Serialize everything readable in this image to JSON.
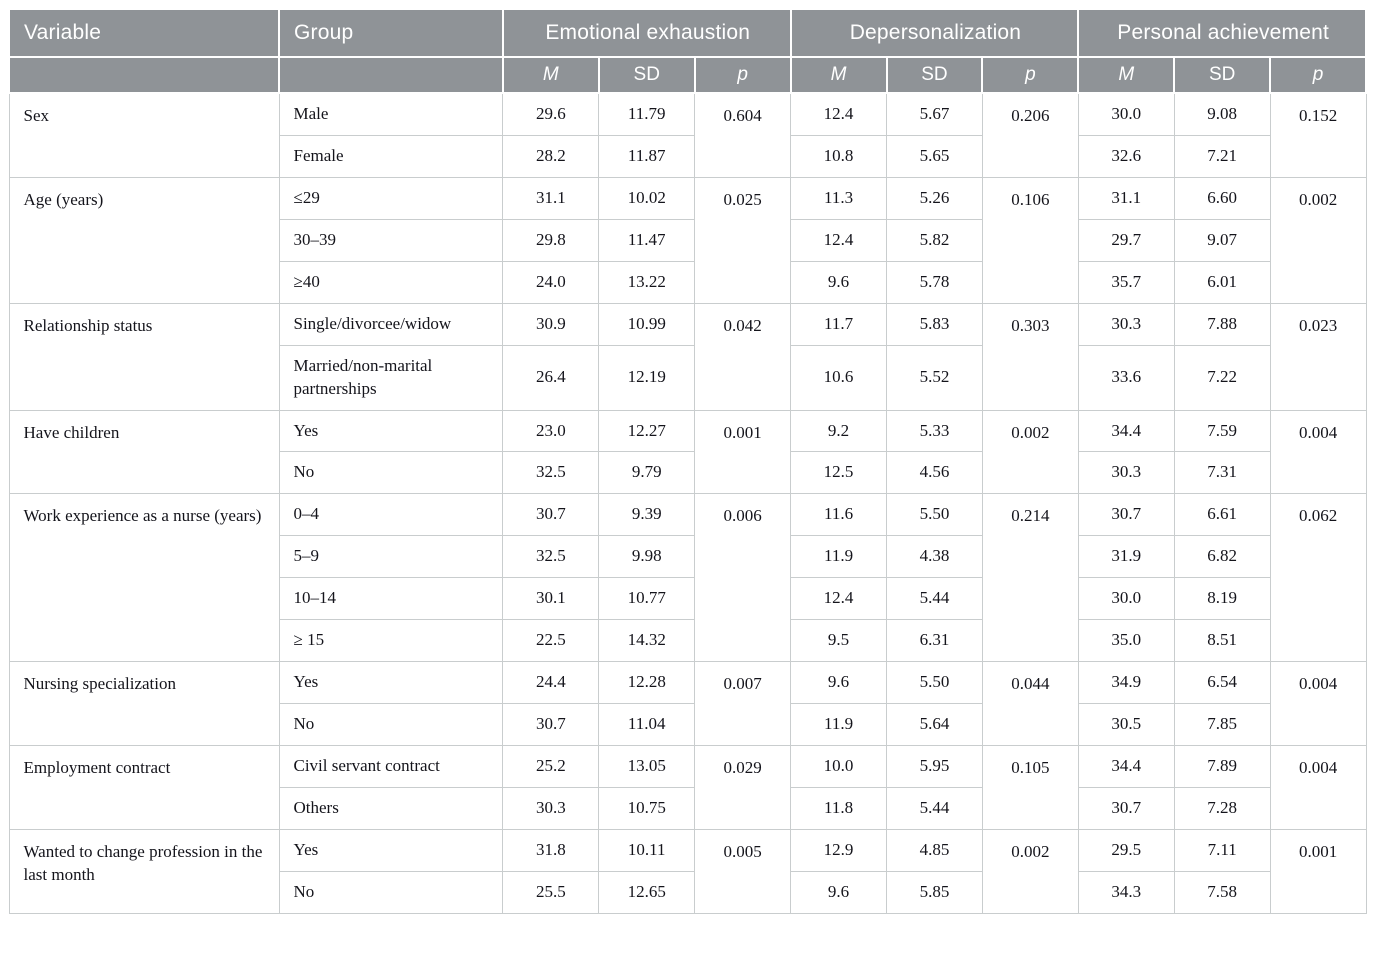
{
  "table": {
    "header": {
      "variable": "Variable",
      "group": "Group",
      "measures": [
        {
          "label": "Emotional exhaustion"
        },
        {
          "label": "Depersonalization"
        },
        {
          "label": "Personal achievement"
        }
      ],
      "stats": [
        "M",
        "SD",
        "p"
      ]
    },
    "sections": [
      {
        "variable": "Sex",
        "p": [
          "0.604",
          "0.206",
          "0.152"
        ],
        "rows": [
          {
            "group": "Male",
            "values": [
              "29.6",
              "11.79",
              "12.4",
              "5.67",
              "30.0",
              "9.08"
            ]
          },
          {
            "group": "Female",
            "values": [
              "28.2",
              "11.87",
              "10.8",
              "5.65",
              "32.6",
              "7.21"
            ]
          }
        ]
      },
      {
        "variable": "Age (years)",
        "p": [
          "0.025",
          "0.106",
          "0.002"
        ],
        "rows": [
          {
            "group": "≤29",
            "values": [
              "31.1",
              "10.02",
              "11.3",
              "5.26",
              "31.1",
              "6.60"
            ]
          },
          {
            "group": "30–39",
            "values": [
              "29.8",
              "11.47",
              "12.4",
              "5.82",
              "29.7",
              "9.07"
            ]
          },
          {
            "group": "≥40",
            "values": [
              "24.0",
              "13.22",
              "9.6",
              "5.78",
              "35.7",
              "6.01"
            ]
          }
        ]
      },
      {
        "variable": "Relationship status",
        "p": [
          "0.042",
          "0.303",
          "0.023"
        ],
        "rows": [
          {
            "group": "Single/divorcee/widow",
            "values": [
              "30.9",
              "10.99",
              "11.7",
              "5.83",
              "30.3",
              "7.88"
            ]
          },
          {
            "group": "Married/non-marital partnerships",
            "values": [
              "26.4",
              "12.19",
              "10.6",
              "5.52",
              "33.6",
              "7.22"
            ]
          }
        ]
      },
      {
        "variable": "Have children",
        "p": [
          "0.001",
          "0.002",
          "0.004"
        ],
        "rows": [
          {
            "group": "Yes",
            "values": [
              "23.0",
              "12.27",
              "9.2",
              "5.33",
              "34.4",
              "7.59"
            ]
          },
          {
            "group": "No",
            "values": [
              "32.5",
              "9.79",
              "12.5",
              "4.56",
              "30.3",
              "7.31"
            ]
          }
        ]
      },
      {
        "variable": "Work experience as a nurse (years)",
        "p": [
          "0.006",
          "0.214",
          "0.062"
        ],
        "rows": [
          {
            "group": "0–4",
            "values": [
              "30.7",
              "9.39",
              "11.6",
              "5.50",
              "30.7",
              "6.61"
            ]
          },
          {
            "group": "5–9",
            "values": [
              "32.5",
              "9.98",
              "11.9",
              "4.38",
              "31.9",
              "6.82"
            ]
          },
          {
            "group": "10–14",
            "values": [
              "30.1",
              "10.77",
              "12.4",
              "5.44",
              "30.0",
              "8.19"
            ]
          },
          {
            "group": "≥ 15",
            "values": [
              "22.5",
              "14.32",
              "9.5",
              "6.31",
              "35.0",
              "8.51"
            ]
          }
        ]
      },
      {
        "variable": "Nursing specialization",
        "p": [
          "0.007",
          "0.044",
          "0.004"
        ],
        "rows": [
          {
            "group": "Yes",
            "values": [
              "24.4",
              "12.28",
              "9.6",
              "5.50",
              "34.9",
              "6.54"
            ]
          },
          {
            "group": "No",
            "values": [
              "30.7",
              "11.04",
              "11.9",
              "5.64",
              "30.5",
              "7.85"
            ]
          }
        ]
      },
      {
        "variable": "Employment contract",
        "p": [
          "0.029",
          "0.105",
          "0.004"
        ],
        "rows": [
          {
            "group": "Civil servant contract",
            "values": [
              "25.2",
              "13.05",
              "10.0",
              "5.95",
              "34.4",
              "7.89"
            ]
          },
          {
            "group": "Others",
            "values": [
              "30.3",
              "10.75",
              "11.8",
              "5.44",
              "30.7",
              "7.28"
            ]
          }
        ]
      },
      {
        "variable": "Wanted to change profession in the last month",
        "p": [
          "0.005",
          "0.002",
          "0.001"
        ],
        "rows": [
          {
            "group": "Yes",
            "values": [
              "31.8",
              "10.11",
              "12.9",
              "4.85",
              "29.5",
              "7.11"
            ]
          },
          {
            "group": "No",
            "values": [
              "25.5",
              "12.65",
              "9.6",
              "5.85",
              "34.3",
              "7.58"
            ]
          }
        ]
      }
    ]
  }
}
